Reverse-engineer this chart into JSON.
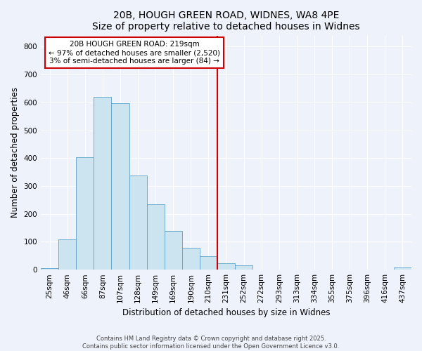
{
  "title1": "20B, HOUGH GREEN ROAD, WIDNES, WA8 4PE",
  "title2": "Size of property relative to detached houses in Widnes",
  "xlabel": "Distribution of detached houses by size in Widnes",
  "ylabel": "Number of detached properties",
  "bar_labels": [
    "25sqm",
    "46sqm",
    "66sqm",
    "87sqm",
    "107sqm",
    "128sqm",
    "149sqm",
    "169sqm",
    "190sqm",
    "210sqm",
    "231sqm",
    "252sqm",
    "272sqm",
    "293sqm",
    "313sqm",
    "334sqm",
    "355sqm",
    "375sqm",
    "396sqm",
    "416sqm",
    "437sqm"
  ],
  "bar_values": [
    5,
    108,
    403,
    621,
    596,
    337,
    235,
    138,
    79,
    48,
    24,
    15,
    0,
    0,
    0,
    0,
    0,
    0,
    0,
    0,
    7
  ],
  "bar_color": "#cce4f0",
  "bar_edge_color": "#5ba3c9",
  "vline_x_index": 9.5,
  "vline_color": "#cc0000",
  "annotation_title": "20B HOUGH GREEN ROAD: 219sqm",
  "annotation_line1": "← 97% of detached houses are smaller (2,520)",
  "annotation_line2": "3% of semi-detached houses are larger (84) →",
  "annotation_box_color": "#ffffff",
  "annotation_border_color": "#cc0000",
  "ylim": [
    0,
    840
  ],
  "yticks": [
    0,
    100,
    200,
    300,
    400,
    500,
    600,
    700,
    800
  ],
  "footer1": "Contains HM Land Registry data © Crown copyright and database right 2025.",
  "footer2": "Contains public sector information licensed under the Open Government Licence v3.0.",
  "bg_color": "#eef2fb",
  "grid_color": "#ffffff",
  "title_fontsize": 10,
  "axis_label_fontsize": 8.5,
  "tick_fontsize": 7.5,
  "annotation_fontsize": 7.5,
  "footer_fontsize": 6
}
